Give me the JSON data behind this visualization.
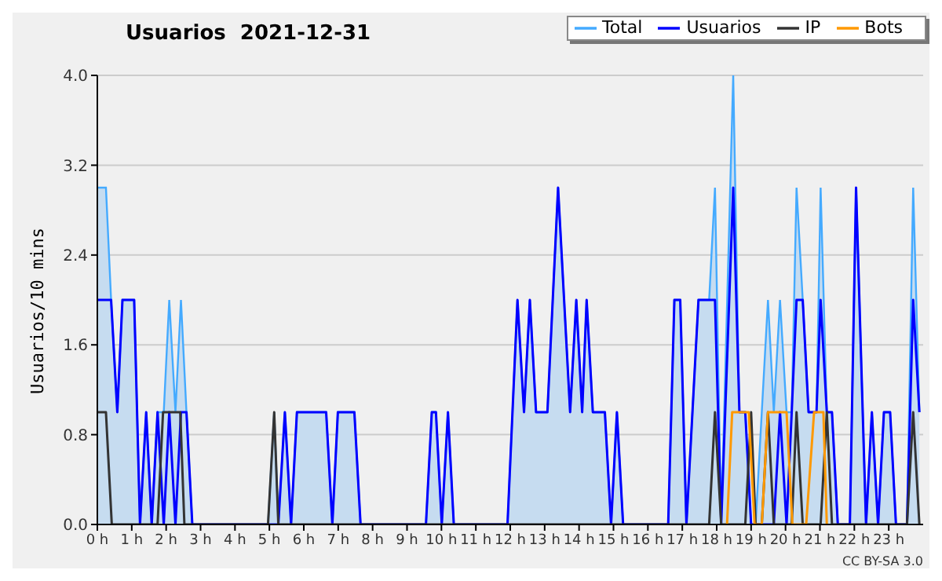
{
  "chart_data": {
    "type": "line",
    "title": "Usuarios  2021-12-31",
    "ylabel": "Usuarios/10 mins",
    "annotations": [
      "CC BY-SA 3.0"
    ],
    "xlim": [
      0,
      24
    ],
    "xticks": [
      {
        "value": 0,
        "label": "0 h"
      },
      {
        "value": 1,
        "label": "1 h"
      },
      {
        "value": 2,
        "label": "2 h"
      },
      {
        "value": 3,
        "label": "3 h"
      },
      {
        "value": 4,
        "label": "4 h"
      },
      {
        "value": 5,
        "label": "5 h"
      },
      {
        "value": 6,
        "label": "6 h"
      },
      {
        "value": 7,
        "label": "7 h"
      },
      {
        "value": 8,
        "label": "8 h"
      },
      {
        "value": 9,
        "label": "9 h"
      },
      {
        "value": 10,
        "label": "10 h"
      },
      {
        "value": 11,
        "label": "11 h"
      },
      {
        "value": 12,
        "label": "12 h"
      },
      {
        "value": 13,
        "label": "13 h"
      },
      {
        "value": 14,
        "label": "14 h"
      },
      {
        "value": 15,
        "label": "15 h"
      },
      {
        "value": 16,
        "label": "16 h"
      },
      {
        "value": 17,
        "label": "17 h"
      },
      {
        "value": 18,
        "label": "18 h"
      },
      {
        "value": 19,
        "label": "19 h"
      },
      {
        "value": 20,
        "label": "20 h"
      },
      {
        "value": 21,
        "label": "21 h"
      },
      {
        "value": 22,
        "label": "22 h"
      },
      {
        "value": 23,
        "label": "23 h"
      }
    ],
    "ylim": [
      0,
      4
    ],
    "yticks": [
      {
        "value": 0,
        "label": "0.0"
      },
      {
        "value": 0.8,
        "label": "0.8"
      },
      {
        "value": 1.6,
        "label": "1.6"
      },
      {
        "value": 2.4,
        "label": "2.4"
      },
      {
        "value": 3.2,
        "label": "3.2"
      },
      {
        "value": 4,
        "label": "4.0"
      }
    ],
    "grid": "y",
    "legend": "top right",
    "marker": "none",
    "line_style": "solid",
    "series": [
      {
        "name": "Total",
        "type": "area",
        "color": "#44aaff",
        "x": [
          0,
          0.25,
          0.4,
          0.58,
          0.73,
          1.07,
          1.24,
          1.42,
          1.58,
          1.75,
          1.93,
          2.09,
          2.27,
          2.43,
          2.59,
          2.76,
          4.96,
          5.14,
          5.26,
          5.45,
          5.63,
          5.8,
          6.65,
          6.83,
          6.99,
          7.47,
          7.65,
          9.55,
          9.72,
          9.84,
          10.01,
          10.19,
          10.36,
          11.92,
          12.21,
          12.4,
          12.57,
          12.75,
          13.08,
          13.39,
          13.74,
          13.92,
          14.09,
          14.22,
          14.4,
          14.75,
          14.93,
          15.1,
          15.28,
          16.59,
          16.77,
          16.94,
          17.12,
          17.47,
          17.78,
          17.95,
          18.13,
          18.48,
          18.66,
          18.83,
          19.0,
          19.13,
          19.31,
          19.49,
          19.66,
          19.84,
          20.03,
          20.18,
          20.32,
          20.5,
          20.67,
          20.9,
          21.02,
          21.2,
          21.35,
          21.52,
          21.87,
          22.05,
          22.34,
          22.51,
          22.69,
          22.86,
          23.04,
          23.21,
          23.53,
          23.71,
          23.89
        ],
        "values": [
          3,
          3,
          2,
          1,
          2,
          2,
          0,
          1,
          0,
          1,
          1,
          2,
          1,
          2,
          1,
          0,
          0,
          1,
          0,
          1,
          0,
          1,
          1,
          0,
          1,
          1,
          0,
          0,
          1,
          1,
          0,
          1,
          0,
          0,
          2,
          1,
          2,
          1,
          1,
          3,
          1,
          2,
          1,
          2,
          1,
          1,
          0,
          1,
          0,
          0,
          2,
          2,
          0,
          2,
          2,
          3,
          0,
          4,
          1,
          1,
          0,
          0,
          1,
          2,
          1,
          2,
          1,
          1,
          3,
          2,
          1,
          1,
          3,
          1,
          1,
          0,
          0,
          3,
          0,
          1,
          0,
          1,
          1,
          0,
          0,
          3,
          1
        ]
      },
      {
        "name": "Usuarios",
        "color": "#0000ff",
        "x": [
          0,
          0.4,
          0.58,
          0.73,
          1.07,
          1.24,
          1.42,
          1.58,
          1.75,
          1.93,
          2.09,
          2.27,
          2.43,
          2.59,
          2.76,
          5.26,
          5.45,
          5.63,
          5.8,
          6.65,
          6.83,
          6.99,
          7.47,
          7.65,
          9.55,
          9.72,
          9.84,
          10.01,
          10.19,
          10.36,
          11.92,
          12.21,
          12.4,
          12.57,
          12.75,
          13.08,
          13.39,
          13.74,
          13.92,
          14.09,
          14.22,
          14.4,
          14.75,
          14.93,
          15.1,
          15.28,
          16.59,
          16.77,
          16.94,
          17.12,
          17.47,
          17.95,
          18.13,
          18.48,
          18.66,
          18.83,
          19.0,
          19.66,
          19.84,
          20.03,
          20.18,
          20.32,
          20.5,
          20.67,
          20.9,
          21.02,
          21.2,
          21.35,
          21.52,
          21.87,
          22.05,
          22.34,
          22.51,
          22.69,
          22.86,
          23.04,
          23.21,
          23.53,
          23.71,
          23.89
        ],
        "values": [
          2,
          2,
          1,
          2,
          2,
          0,
          1,
          0,
          1,
          0,
          1,
          0,
          1,
          1,
          0,
          0,
          1,
          0,
          1,
          1,
          0,
          1,
          1,
          0,
          0,
          1,
          1,
          0,
          1,
          0,
          0,
          2,
          1,
          2,
          1,
          1,
          3,
          1,
          2,
          1,
          2,
          1,
          1,
          0,
          1,
          0,
          0,
          2,
          2,
          0,
          2,
          2,
          0,
          3,
          1,
          1,
          0,
          0,
          1,
          0,
          1,
          2,
          2,
          1,
          1,
          2,
          1,
          1,
          0,
          0,
          3,
          0,
          1,
          0,
          1,
          1,
          0,
          0,
          2,
          1
        ]
      },
      {
        "name": "IP",
        "color": "#333333",
        "x": [
          0,
          0.25,
          0.42,
          1.75,
          1.91,
          2.41,
          2.53,
          4.96,
          5.14,
          5.26,
          17.78,
          17.95,
          18.13,
          18.83,
          19.0,
          19.13,
          19.31,
          19.49,
          19.66,
          20.18,
          20.32,
          20.5,
          21.02,
          21.2,
          21.35,
          23.53,
          23.71,
          23.89
        ],
        "values": [
          1,
          1,
          0,
          0,
          1,
          1,
          0,
          0,
          1,
          0,
          0,
          1,
          0,
          0,
          1,
          0,
          0,
          1,
          0,
          0,
          1,
          0,
          0,
          1,
          0,
          0,
          1,
          0
        ]
      },
      {
        "name": "Bots",
        "color": "#ff9900",
        "x": [
          18.3,
          18.45,
          18.93,
          19.1,
          19.31,
          19.49,
          20.03,
          20.2,
          20.6,
          20.83,
          21.1,
          21.2
        ],
        "values": [
          0,
          1,
          1,
          0,
          0,
          1,
          1,
          0,
          0,
          1,
          1,
          0
        ]
      }
    ]
  }
}
